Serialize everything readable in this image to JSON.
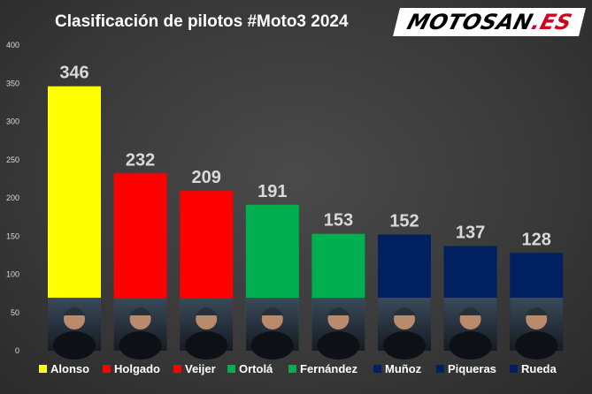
{
  "chart_data": {
    "type": "bar",
    "title": "Clasificación de pilotos #Moto3 2024",
    "categories": [
      "Alonso",
      "Holgado",
      "Veijer",
      "Ortolá",
      "Fernández",
      "Muñoz",
      "Piqueras",
      "Rueda"
    ],
    "values": [
      346,
      232,
      209,
      191,
      153,
      152,
      137,
      128
    ],
    "colors": [
      "#ffff00",
      "#ff0000",
      "#ff0000",
      "#00b050",
      "#00b050",
      "#002060",
      "#002060",
      "#002060"
    ],
    "ylim": [
      0,
      400
    ],
    "yticks": [
      0,
      50,
      100,
      150,
      200,
      250,
      300,
      350,
      400
    ],
    "grid": false,
    "legend_position": "bottom",
    "xlabel": "",
    "ylabel": ""
  },
  "logo": {
    "main": "MOTOSAN",
    "accent": ".ES"
  }
}
